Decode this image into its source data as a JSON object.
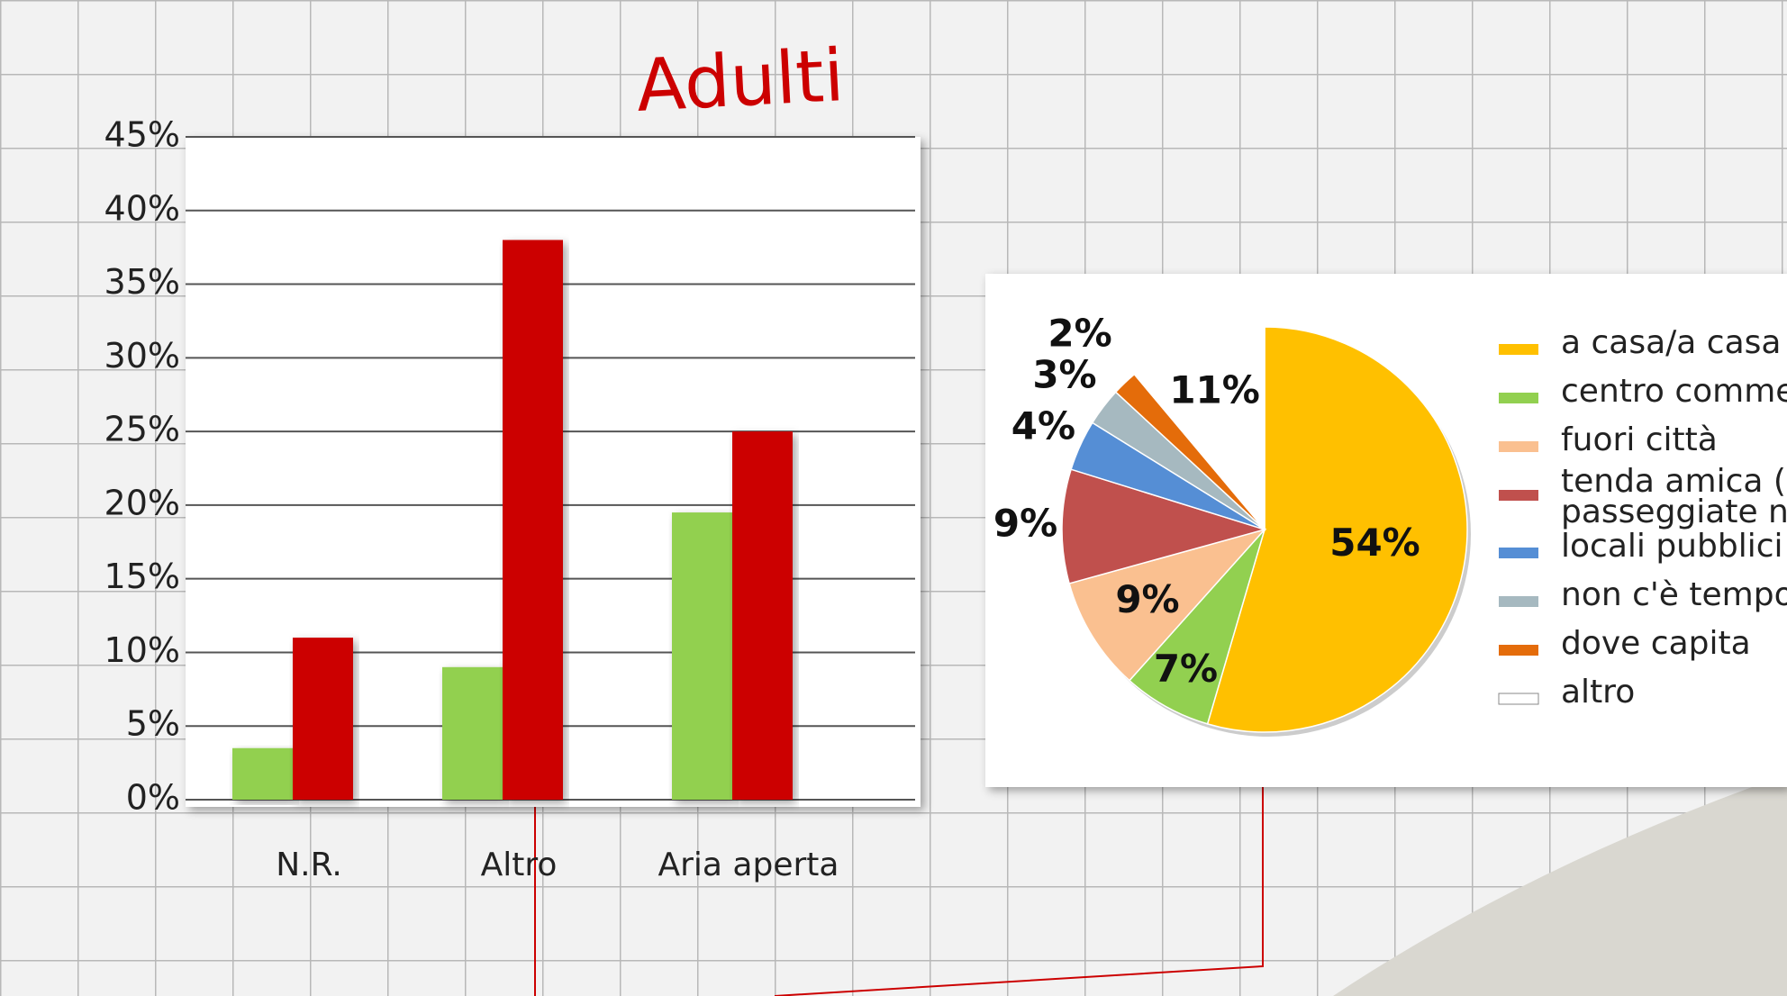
{
  "chart_data": [
    {
      "type": "bar",
      "title": "Adulti",
      "categories": [
        "N.R.",
        "Altro",
        "Aria aperta"
      ],
      "series": [
        {
          "color": "#92d050",
          "values": [
            3.5,
            9,
            19.5
          ]
        },
        {
          "color": "#cc0000",
          "values": [
            11,
            38,
            25
          ]
        }
      ],
      "ylim": [
        0,
        45
      ],
      "yticks": [
        {
          "value": 0,
          "label": "0%"
        },
        {
          "value": 5,
          "label": "5%"
        },
        {
          "value": 10,
          "label": "10%"
        },
        {
          "value": 15,
          "label": "15%"
        },
        {
          "value": 20,
          "label": "20%"
        },
        {
          "value": 25,
          "label": "25%"
        },
        {
          "value": 30,
          "label": "30%"
        },
        {
          "value": 35,
          "label": "35%"
        },
        {
          "value": 40,
          "label": "40%"
        },
        {
          "value": 45,
          "label": "45%"
        }
      ],
      "grid": true
    },
    {
      "type": "pie",
      "categories": [
        "a casa/a casa c",
        "centro comme",
        "fuori città",
        [
          "tenda amica (C",
          "passeggiate  ne"
        ],
        "locali pubblici",
        "non c'è tempo",
        "dove capita",
        "altro"
      ],
      "values": [
        54,
        7,
        9,
        9,
        4,
        3,
        2,
        11
      ],
      "value_labels": [
        "54%",
        "7%",
        "9%",
        "9%",
        "4%",
        "3%",
        "2%",
        "11%"
      ],
      "colors": [
        "#ffc000",
        "#92d050",
        "#fac090",
        "#c0504d",
        "#558ed5",
        "#a6b9c0",
        "#e46c0a",
        "#ffffff"
      ],
      "legend": "right"
    }
  ]
}
